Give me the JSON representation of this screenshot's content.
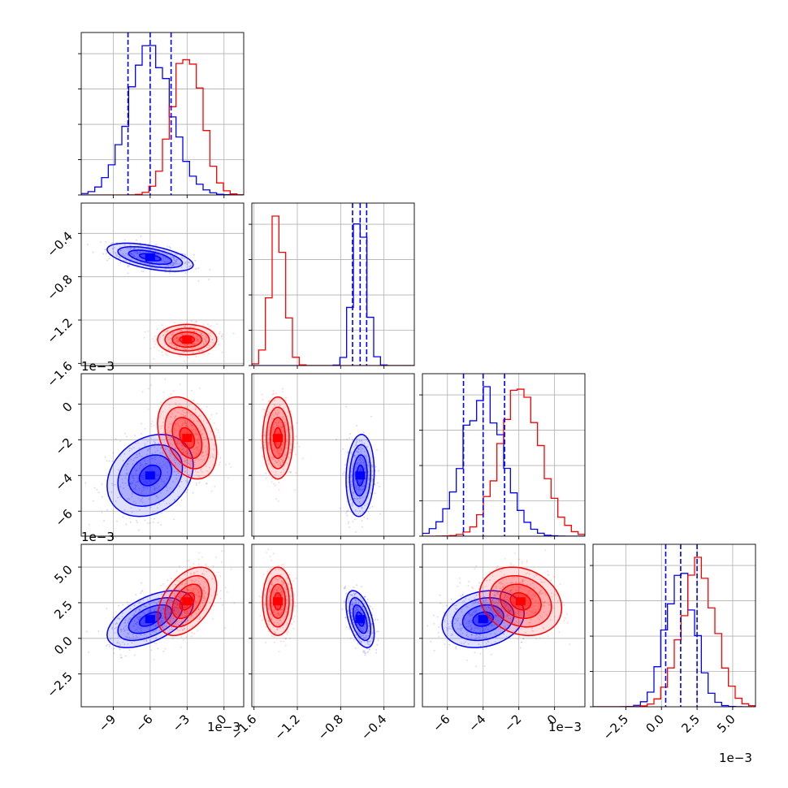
{
  "chart_data": {
    "type": "corner",
    "series": [
      {
        "name": "",
        "color": "#0000ff",
        "p1": {
          "mean": -6.0,
          "sd": 1.75
        },
        "p2": {
          "mean": -0.62,
          "sd": 0.065
        },
        "p3": {
          "mean": -4.0,
          "sd": 1.15
        },
        "p4": {
          "mean": 1.35,
          "sd": 1.0
        },
        "quantiles": {
          "p1": [
            -7.8,
            -6.0,
            -4.3
          ],
          "p2": [
            -0.69,
            -0.62,
            -0.56
          ],
          "p3": [
            -5.1,
            -4.0,
            -2.8
          ],
          "p4": [
            0.3,
            1.35,
            2.5
          ]
        }
      },
      {
        "name": "",
        "color": "#ff0000",
        "p1": {
          "mean": -3.0,
          "sd": 1.2
        },
        "p2": {
          "mean": -1.38,
          "sd": 0.07
        },
        "p3": {
          "mean": -1.9,
          "sd": 1.15
        },
        "p4": {
          "mean": 2.6,
          "sd": 1.2
        }
      }
    ],
    "panels": [
      {
        "row": 0,
        "col": 0,
        "kind": "hist",
        "param": "p1"
      },
      {
        "row": 1,
        "col": 0,
        "kind": "scatter",
        "x": "p1",
        "y": "p2"
      },
      {
        "row": 1,
        "col": 1,
        "kind": "hist",
        "param": "p2"
      },
      {
        "row": 2,
        "col": 0,
        "kind": "scatter",
        "x": "p1",
        "y": "p3"
      },
      {
        "row": 2,
        "col": 1,
        "kind": "scatter",
        "x": "p2",
        "y": "p3"
      },
      {
        "row": 2,
        "col": 2,
        "kind": "hist",
        "param": "p3"
      },
      {
        "row": 3,
        "col": 0,
        "kind": "scatter",
        "x": "p1",
        "y": "p4"
      },
      {
        "row": 3,
        "col": 1,
        "kind": "scatter",
        "x": "p2",
        "y": "p4"
      },
      {
        "row": 3,
        "col": 2,
        "kind": "scatter",
        "x": "p3",
        "y": "p4"
      },
      {
        "row": 3,
        "col": 3,
        "kind": "hist",
        "param": "p4"
      }
    ],
    "params": {
      "p1": {
        "range": [
          -11.6,
          1.6
        ],
        "ticks": [
          -9,
          -6,
          -3,
          0
        ],
        "tick_labels": [
          "−9",
          "−6",
          "−3",
          "0"
        ]
      },
      "p2": {
        "range": [
          -1.62,
          -0.12
        ],
        "ticks": [
          -1.6,
          -1.2,
          -0.8,
          -0.4
        ],
        "tick_labels": [
          "−1.6",
          "−1.2",
          "−0.8",
          "−0.4"
        ]
      },
      "p3": {
        "range": [
          -7.4,
          1.7
        ],
        "ticks": [
          -6,
          -4,
          -2,
          0
        ],
        "tick_labels": [
          "−6",
          "−4",
          "−2",
          "0"
        ]
      },
      "p4": {
        "range": [
          -4.8,
          6.6
        ],
        "ticks": [
          -2.5,
          0.0,
          2.5,
          5.0
        ],
        "tick_labels": [
          "−2.5",
          "0.0",
          "2.5",
          "5.0"
        ]
      }
    },
    "offset_labels": {
      "y_row1": "1e−3",
      "y_row2": "1e−3",
      "x_col0": "1e−3",
      "x_col2": "1e−3",
      "x_col3": "1e−3"
    },
    "grid": true,
    "quantile_line_style": "dashed",
    "contour_levels_sigma": [
      0.5,
      1.0,
      1.5,
      2.0
    ]
  }
}
